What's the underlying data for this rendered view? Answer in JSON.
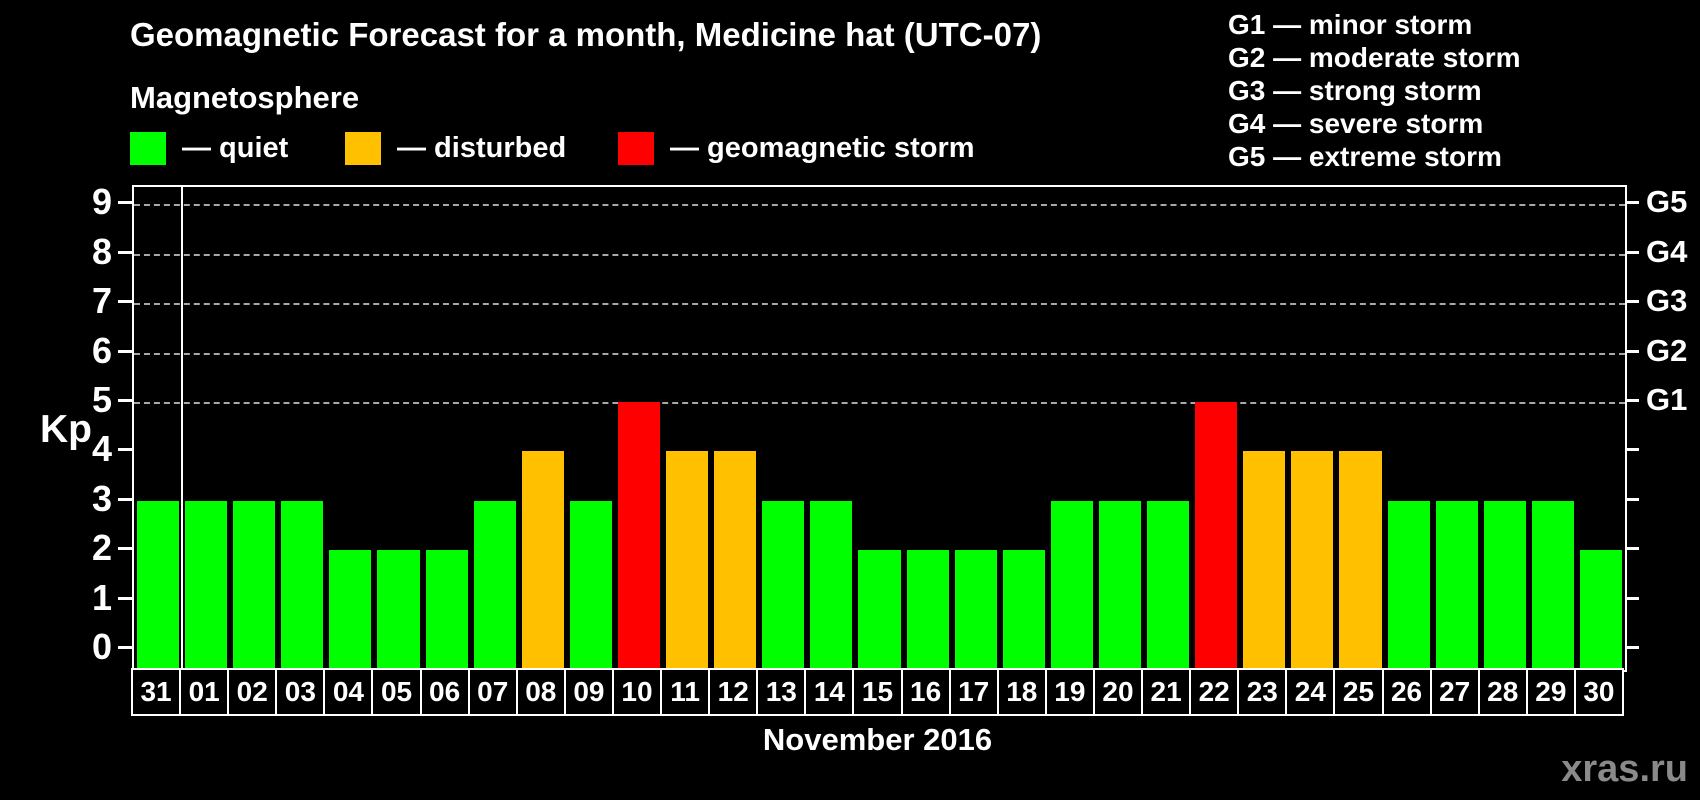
{
  "header": {
    "title": "Geomagnetic Forecast for a month, Medicine hat (UTC-07)",
    "subtitle": "Magnetosphere"
  },
  "legend": {
    "items": [
      {
        "key": "quiet",
        "label": "— quiet",
        "color": "#00FF00"
      },
      {
        "key": "disturbed",
        "label": "— disturbed",
        "color": "#FFC000"
      },
      {
        "key": "storm",
        "label": "— geomagnetic storm",
        "color": "#FF0000"
      }
    ]
  },
  "g_legend": {
    "items": [
      "G1 — minor storm",
      "G2 — moderate storm",
      "G3 — strong storm",
      "G4 — severe storm",
      "G5 — extreme storm"
    ]
  },
  "watermark": "xras.ru",
  "chart_data": {
    "type": "bar",
    "title": "Geomagnetic Forecast for a month, Medicine hat (UTC-07)",
    "xlabel": "November 2016",
    "ylabel": "Kp",
    "ylim": [
      0,
      9
    ],
    "y_ticks": [
      0,
      1,
      2,
      3,
      4,
      5,
      6,
      7,
      8,
      9
    ],
    "grid_levels": [
      5,
      6,
      7,
      8,
      9
    ],
    "grid_style": "dashed",
    "right_axis_labels": [
      {
        "kp": 5,
        "label": "G1"
      },
      {
        "kp": 6,
        "label": "G2"
      },
      {
        "kp": 7,
        "label": "G3"
      },
      {
        "kp": 8,
        "label": "G4"
      },
      {
        "kp": 9,
        "label": "G5"
      }
    ],
    "categories": [
      "31",
      "01",
      "02",
      "03",
      "04",
      "05",
      "06",
      "07",
      "08",
      "09",
      "10",
      "11",
      "12",
      "13",
      "14",
      "15",
      "16",
      "17",
      "18",
      "19",
      "20",
      "21",
      "22",
      "23",
      "24",
      "25",
      "26",
      "27",
      "28",
      "29",
      "30"
    ],
    "values": [
      3,
      3,
      3,
      3,
      2,
      2,
      2,
      3,
      4,
      3,
      5,
      4,
      4,
      3,
      3,
      2,
      2,
      2,
      2,
      3,
      3,
      3,
      5,
      4,
      4,
      4,
      3,
      3,
      3,
      3,
      2
    ],
    "statuses": [
      "quiet",
      "quiet",
      "quiet",
      "quiet",
      "quiet",
      "quiet",
      "quiet",
      "quiet",
      "disturbed",
      "quiet",
      "storm",
      "disturbed",
      "disturbed",
      "quiet",
      "quiet",
      "quiet",
      "quiet",
      "quiet",
      "quiet",
      "quiet",
      "quiet",
      "quiet",
      "storm",
      "disturbed",
      "disturbed",
      "disturbed",
      "quiet",
      "quiet",
      "quiet",
      "quiet",
      "quiet"
    ],
    "status_colors": {
      "quiet": "#00FF00",
      "disturbed": "#FFC000",
      "storm": "#FF0000"
    },
    "month_boundary_after_index": 0
  }
}
